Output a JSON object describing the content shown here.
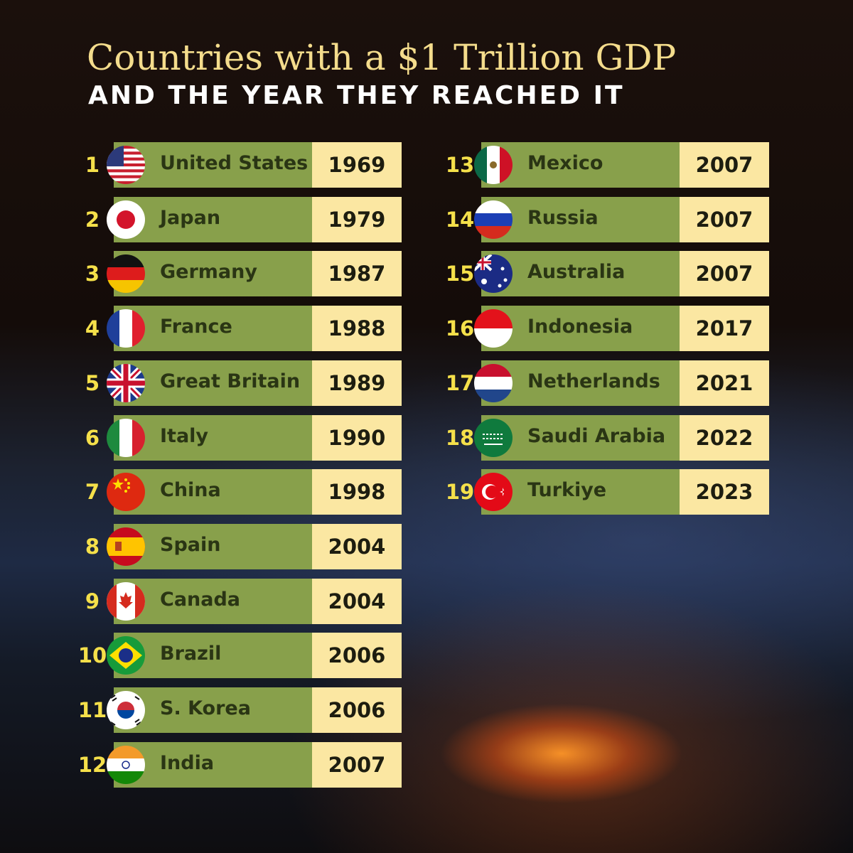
{
  "header": {
    "title": "Countries with a $1 Trillion GDP",
    "subtitle": "AND THE YEAR THEY REACHED IT"
  },
  "table": {
    "rows": [
      [
        "1",
        "United States",
        "1969"
      ],
      [
        "2",
        "Japan",
        "1979"
      ],
      [
        "3",
        "Germany",
        "1987"
      ],
      [
        "4",
        "France",
        "1988"
      ],
      [
        "5",
        "Great Britain",
        "1989"
      ],
      [
        "6",
        "Italy",
        "1990"
      ],
      [
        "7",
        "China",
        "1998"
      ],
      [
        "8",
        "Spain",
        "2004"
      ],
      [
        "9",
        "Canada",
        "2004"
      ],
      [
        "10",
        "Brazil",
        "2006"
      ],
      [
        "11",
        "S. Korea",
        "2006"
      ],
      [
        "12",
        "India",
        "2007"
      ],
      [
        "13",
        "Mexico",
        "2007"
      ],
      [
        "14",
        "Russia",
        "2007"
      ],
      [
        "15",
        "Australia",
        "2007"
      ],
      [
        "16",
        "Indonesia",
        "2017"
      ],
      [
        "17",
        "Netherlands",
        "2021"
      ],
      [
        "18",
        "Saudi Arabia",
        "2022"
      ],
      [
        "19",
        "Turkiye",
        "2023"
      ]
    ]
  }
}
